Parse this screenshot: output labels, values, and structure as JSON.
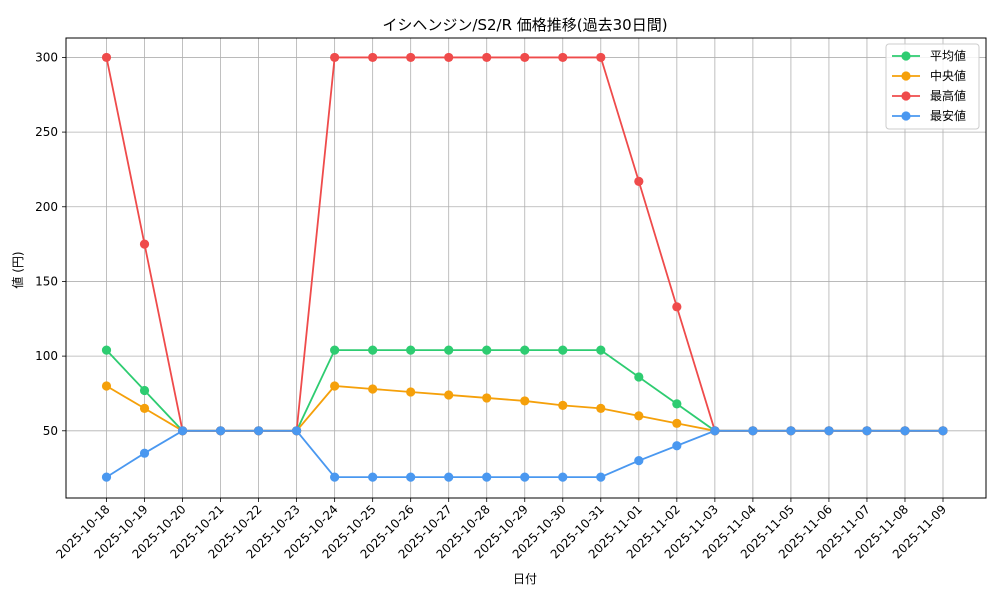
{
  "chart_data": {
    "type": "line",
    "title": "イシヘンジン/S2/R 価格推移(過去30日間)",
    "xlabel": "日付",
    "ylabel": "値 (円)",
    "ylim": [
      5,
      313
    ],
    "yticks": [
      50,
      100,
      150,
      200,
      250,
      300
    ],
    "grid": true,
    "legend_position": "top-right",
    "categories": [
      "2025-10-18",
      "2025-10-19",
      "2025-10-20",
      "2025-10-21",
      "2025-10-22",
      "2025-10-23",
      "2025-10-24",
      "2025-10-25",
      "2025-10-26",
      "2025-10-27",
      "2025-10-28",
      "2025-10-29",
      "2025-10-30",
      "2025-10-31",
      "2025-11-01",
      "2025-11-02",
      "2025-11-03",
      "2025-11-04",
      "2025-11-05",
      "2025-11-06",
      "2025-11-07",
      "2025-11-08",
      "2025-11-09"
    ],
    "series": [
      {
        "name": "平均値",
        "color": "#2ecc71",
        "values": [
          104,
          77,
          50,
          50,
          50,
          50,
          104,
          104,
          104,
          104,
          104,
          104,
          104,
          104,
          86,
          68,
          50,
          50,
          50,
          50,
          50,
          50,
          50
        ]
      },
      {
        "name": "中央値",
        "color": "#f5a00a",
        "values": [
          80,
          65,
          50,
          50,
          50,
          50,
          80,
          78,
          76,
          74,
          72,
          70,
          67,
          65,
          60,
          55,
          50,
          50,
          50,
          50,
          50,
          50,
          50
        ]
      },
      {
        "name": "最高値",
        "color": "#ef4b4b",
        "values": [
          300,
          175,
          50,
          50,
          50,
          50,
          300,
          300,
          300,
          300,
          300,
          300,
          300,
          300,
          217,
          133,
          50,
          50,
          50,
          50,
          50,
          50,
          50
        ]
      },
      {
        "name": "最安値",
        "color": "#4a98f0",
        "values": [
          19,
          35,
          50,
          50,
          50,
          50,
          19,
          19,
          19,
          19,
          19,
          19,
          19,
          19,
          30,
          40,
          50,
          50,
          50,
          50,
          50,
          50,
          50
        ]
      }
    ]
  }
}
